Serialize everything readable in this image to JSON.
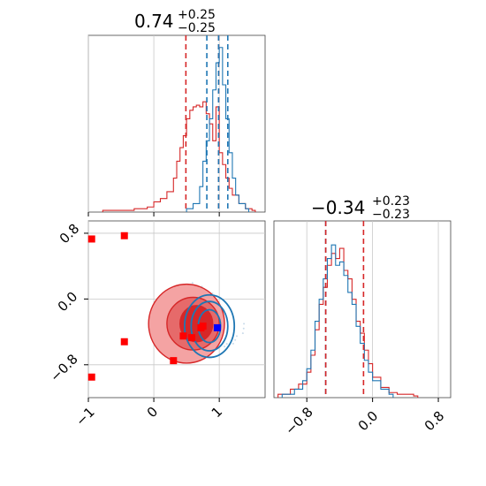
{
  "chart_data": [
    {
      "type": "histogram",
      "panel": "top-left",
      "title": {
        "value": "0.74",
        "plus": "+0.25",
        "minus": "−0.25"
      },
      "xlim": [
        -1.0,
        1.7
      ],
      "grid": true,
      "series": [
        {
          "name": "red",
          "color": "#d62728",
          "bins": [
            [
              -0.78,
              0.01
            ],
            [
              -0.3,
              0.02
            ],
            [
              -0.1,
              0.03
            ],
            [
              0.0,
              0.06
            ],
            [
              0.1,
              0.08
            ],
            [
              0.2,
              0.12
            ],
            [
              0.3,
              0.2
            ],
            [
              0.35,
              0.3
            ],
            [
              0.4,
              0.38
            ],
            [
              0.45,
              0.45
            ],
            [
              0.5,
              0.55
            ],
            [
              0.55,
              0.6
            ],
            [
              0.6,
              0.62
            ],
            [
              0.65,
              0.63
            ],
            [
              0.7,
              0.62
            ],
            [
              0.75,
              0.65
            ],
            [
              0.8,
              0.58
            ],
            [
              0.85,
              0.52
            ],
            [
              0.9,
              0.42
            ],
            [
              0.95,
              0.62
            ],
            [
              1.0,
              0.35
            ],
            [
              1.05,
              0.28
            ],
            [
              1.1,
              0.2
            ],
            [
              1.15,
              0.14
            ],
            [
              1.2,
              0.1
            ],
            [
              1.3,
              0.05
            ],
            [
              1.4,
              0.02
            ],
            [
              1.5,
              0.01
            ]
          ]
        },
        {
          "name": "blue",
          "color": "#1f77b4",
          "bins": [
            [
              0.5,
              0.02
            ],
            [
              0.6,
              0.05
            ],
            [
              0.7,
              0.15
            ],
            [
              0.75,
              0.3
            ],
            [
              0.8,
              0.42
            ],
            [
              0.85,
              0.55
            ],
            [
              0.9,
              0.72
            ],
            [
              0.95,
              0.88
            ],
            [
              1.0,
              0.97
            ],
            [
              1.05,
              0.75
            ],
            [
              1.1,
              0.55
            ],
            [
              1.15,
              0.35
            ],
            [
              1.2,
              0.2
            ],
            [
              1.25,
              0.1
            ],
            [
              1.3,
              0.05
            ],
            [
              1.4,
              0.02
            ]
          ]
        }
      ],
      "quantile_lines": [
        {
          "color": "#d62728",
          "x": [
            0.49,
            0.99
          ]
        },
        {
          "color": "#1f77b4",
          "x": [
            0.81,
            0.99,
            1.13
          ]
        }
      ]
    },
    {
      "type": "scatter",
      "panel": "bottom-left",
      "xlim": [
        -1.0,
        1.7
      ],
      "ylim": [
        -1.2,
        0.95
      ],
      "xticks": [
        "−1",
        "0",
        "1"
      ],
      "yticks": [
        "0.8",
        "0.0",
        "−0.8"
      ],
      "grid": true,
      "red_contour_fill": [
        {
          "x": 0.5,
          "y": -0.3,
          "rx": 0.58,
          "ry": 0.48,
          "color": "#f4a3a3"
        },
        {
          "x": 0.6,
          "y": -0.3,
          "rx": 0.4,
          "ry": 0.32,
          "color": "#e66a6a"
        },
        {
          "x": 0.65,
          "y": -0.3,
          "rx": 0.25,
          "ry": 0.22,
          "color": "#d62728"
        }
      ],
      "red_points": [
        [
          -0.95,
          0.73
        ],
        [
          -0.45,
          0.77
        ],
        [
          -0.45,
          -0.52
        ],
        [
          -0.95,
          -0.95
        ],
        [
          0.3,
          -0.75
        ],
        [
          0.45,
          -0.45
        ],
        [
          0.58,
          -0.47
        ],
        [
          0.72,
          -0.35
        ],
        [
          0.75,
          -0.33
        ]
      ],
      "blue_points": [
        [
          0.97,
          -0.35
        ]
      ]
    },
    {
      "type": "histogram",
      "panel": "bottom-right",
      "title": {
        "value": "−0.34",
        "plus": "+0.23",
        "minus": "−0.23"
      },
      "xlim": [
        -1.2,
        0.95
      ],
      "xticks": [
        "−0.8",
        "0.0",
        "0.8"
      ],
      "grid": true,
      "series": [
        {
          "name": "red",
          "color": "#d62728",
          "bins": [
            [
              -1.15,
              0.02
            ],
            [
              -1.0,
              0.05
            ],
            [
              -0.9,
              0.08
            ],
            [
              -0.8,
              0.15
            ],
            [
              -0.75,
              0.25
            ],
            [
              -0.7,
              0.4
            ],
            [
              -0.65,
              0.55
            ],
            [
              -0.6,
              0.65
            ],
            [
              -0.55,
              0.78
            ],
            [
              -0.5,
              0.85
            ],
            [
              -0.45,
              0.82
            ],
            [
              -0.4,
              0.88
            ],
            [
              -0.35,
              0.75
            ],
            [
              -0.3,
              0.7
            ],
            [
              -0.25,
              0.58
            ],
            [
              -0.2,
              0.45
            ],
            [
              -0.15,
              0.38
            ],
            [
              -0.1,
              0.28
            ],
            [
              -0.05,
              0.2
            ],
            [
              0.0,
              0.12
            ],
            [
              0.1,
              0.06
            ],
            [
              0.2,
              0.03
            ],
            [
              0.3,
              0.02
            ],
            [
              0.5,
              0.01
            ]
          ]
        },
        {
          "name": "blue",
          "color": "#1f77b4",
          "bins": [
            [
              -1.1,
              0.02
            ],
            [
              -0.95,
              0.05
            ],
            [
              -0.85,
              0.1
            ],
            [
              -0.8,
              0.17
            ],
            [
              -0.75,
              0.28
            ],
            [
              -0.7,
              0.45
            ],
            [
              -0.65,
              0.58
            ],
            [
              -0.6,
              0.7
            ],
            [
              -0.55,
              0.82
            ],
            [
              -0.5,
              0.9
            ],
            [
              -0.45,
              0.78
            ],
            [
              -0.4,
              0.8
            ],
            [
              -0.35,
              0.72
            ],
            [
              -0.3,
              0.62
            ],
            [
              -0.25,
              0.55
            ],
            [
              -0.2,
              0.42
            ],
            [
              -0.15,
              0.32
            ],
            [
              -0.1,
              0.22
            ],
            [
              -0.05,
              0.15
            ],
            [
              0.0,
              0.1
            ],
            [
              0.1,
              0.05
            ],
            [
              0.2,
              0.02
            ]
          ]
        }
      ],
      "quantile_lines": [
        {
          "color": "#1f77b4",
          "x": [
            -0.57
          ]
        },
        {
          "color": "#d62728",
          "x": [
            -0.57,
            -0.11
          ]
        }
      ]
    }
  ]
}
